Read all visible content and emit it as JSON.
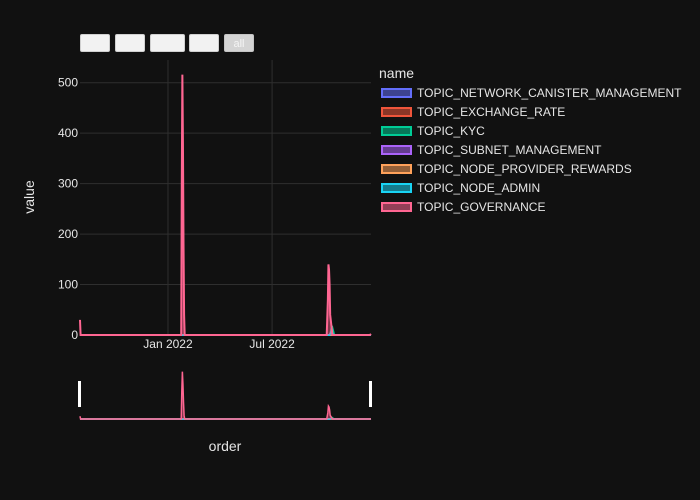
{
  "range_selector": {
    "buttons": [
      {
        "label": "",
        "active": false
      },
      {
        "label": "",
        "active": false
      },
      {
        "label": "",
        "active": false
      },
      {
        "label": "",
        "active": false
      },
      {
        "label": "all",
        "active": true
      }
    ]
  },
  "chart_data": {
    "type": "area",
    "xlabel": "order",
    "ylabel": "value",
    "legend_title": "name",
    "legend_position": "right",
    "grid": true,
    "rangeslider": true,
    "xlim": [
      "2021-08-01",
      "2022-12-20"
    ],
    "ylim": [
      0,
      545
    ],
    "x_ticks": [
      {
        "date": "2022-01-01",
        "label": "Jan 2022"
      },
      {
        "date": "2022-07-01",
        "label": "Jul 2022"
      }
    ],
    "y_ticks": [
      0,
      100,
      200,
      300,
      400,
      500
    ],
    "series": [
      {
        "name": "TOPIC_NETWORK_CANISTER_MANAGEMENT",
        "color": "#636efa",
        "points": [
          [
            "2021-08-01",
            0
          ],
          [
            "2022-10-08",
            0
          ],
          [
            "2022-10-12",
            2
          ],
          [
            "2022-10-16",
            0
          ],
          [
            "2022-12-20",
            0
          ]
        ]
      },
      {
        "name": "TOPIC_EXCHANGE_RATE",
        "color": "#ef553b",
        "points": [
          [
            "2021-08-01",
            0
          ],
          [
            "2022-12-20",
            0
          ]
        ]
      },
      {
        "name": "TOPIC_KYC",
        "color": "#00cc96",
        "points": [
          [
            "2021-08-01",
            0
          ],
          [
            "2022-10-10",
            0
          ],
          [
            "2022-10-13",
            18
          ],
          [
            "2022-10-17",
            0
          ],
          [
            "2022-12-20",
            0
          ]
        ]
      },
      {
        "name": "TOPIC_SUBNET_MANAGEMENT",
        "color": "#ab63fa",
        "points": [
          [
            "2021-08-01",
            0
          ],
          [
            "2022-10-09",
            0
          ],
          [
            "2022-10-12",
            6
          ],
          [
            "2022-10-15",
            0
          ],
          [
            "2022-12-20",
            0
          ]
        ]
      },
      {
        "name": "TOPIC_NODE_PROVIDER_REWARDS",
        "color": "#ffa15a",
        "points": [
          [
            "2021-08-01",
            0
          ],
          [
            "2022-12-20",
            0
          ]
        ]
      },
      {
        "name": "TOPIC_NODE_ADMIN",
        "color": "#19d3f3",
        "points": [
          [
            "2021-08-01",
            0
          ],
          [
            "2022-10-09",
            0
          ],
          [
            "2022-10-12",
            5
          ],
          [
            "2022-10-16",
            0
          ],
          [
            "2022-12-20",
            0
          ]
        ]
      },
      {
        "name": "TOPIC_GOVERNANCE",
        "color": "#ff6692",
        "points": [
          [
            "2021-08-01",
            30
          ],
          [
            "2021-08-02",
            0
          ],
          [
            "2022-01-24",
            0
          ],
          [
            "2022-01-25",
            300
          ],
          [
            "2022-01-26",
            516
          ],
          [
            "2022-01-27",
            380
          ],
          [
            "2022-01-28",
            180
          ],
          [
            "2022-01-29",
            40
          ],
          [
            "2022-01-30",
            0
          ],
          [
            "2022-10-04",
            0
          ],
          [
            "2022-10-06",
            70
          ],
          [
            "2022-10-07",
            140
          ],
          [
            "2022-10-08",
            130
          ],
          [
            "2022-10-09",
            100
          ],
          [
            "2022-10-10",
            40
          ],
          [
            "2022-10-13",
            10
          ],
          [
            "2022-10-14",
            0
          ],
          [
            "2022-12-18",
            0
          ],
          [
            "2022-12-20",
            2
          ]
        ]
      }
    ]
  }
}
